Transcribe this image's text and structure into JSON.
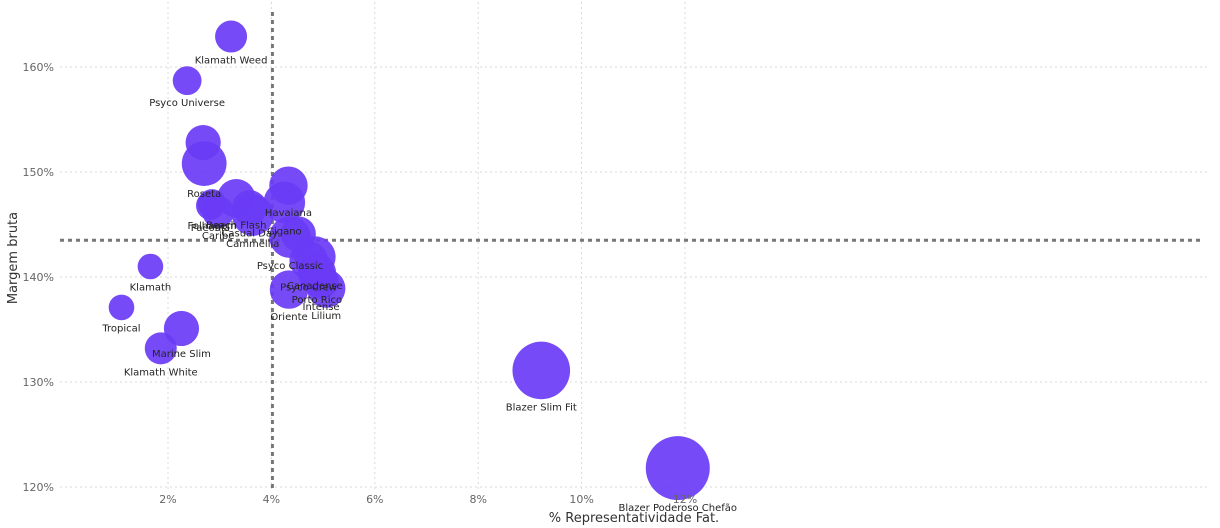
{
  "chart_data": {
    "type": "scatter",
    "title": "",
    "xlabel": "% Representatividade Fat.",
    "ylabel": "Margem bruta",
    "xlim": [
      1.0,
      12.0
    ],
    "ylim": [
      120,
      165
    ],
    "x_ticks": [
      2,
      4,
      6,
      8,
      10,
      12
    ],
    "x_tick_labels": [
      "2%",
      "4%",
      "6%",
      "8%",
      "10%",
      "12%"
    ],
    "y_ticks": [
      120,
      130,
      140,
      150,
      160
    ],
    "y_tick_labels": [
      "120%",
      "130%",
      "140%",
      "150%",
      "160%"
    ],
    "grid": true,
    "bubble_color": "#6a3bf5",
    "reference_line_color": "#777777",
    "average_x": 4.02,
    "average_y": 143.5,
    "points": [
      {
        "label": "Klamath Weed",
        "x": 3.22,
        "y": 162.9,
        "size": 1.0
      },
      {
        "label": "Psyco Universe",
        "x": 2.37,
        "y": 158.7,
        "size": 0.9
      },
      {
        "label": "",
        "x": 2.68,
        "y": 152.8,
        "size": 1.1
      },
      {
        "label": "Roseta",
        "x": 2.7,
        "y": 150.8,
        "size": 1.4
      },
      {
        "label": "Folhagem",
        "x": 2.85,
        "y": 147.0,
        "size": 0.9
      },
      {
        "label": "Paeonia",
        "x": 2.82,
        "y": 146.8,
        "size": 0.9
      },
      {
        "label": "Caribe",
        "x": 2.97,
        "y": 146.2,
        "size": 1.0
      },
      {
        "label": "Beach Flash",
        "x": 3.32,
        "y": 147.5,
        "size": 1.2
      },
      {
        "label": "Casual Day",
        "x": 3.58,
        "y": 146.6,
        "size": 1.1
      },
      {
        "label": "Cammellia",
        "x": 3.64,
        "y": 145.9,
        "size": 1.3
      },
      {
        "label": "Klamath",
        "x": 1.66,
        "y": 141.0,
        "size": 0.8
      },
      {
        "label": "Tropical",
        "x": 1.1,
        "y": 137.1,
        "size": 0.8
      },
      {
        "label": "Marine Slim",
        "x": 2.26,
        "y": 135.1,
        "size": 1.1
      },
      {
        "label": "Klamath White",
        "x": 1.86,
        "y": 133.2,
        "size": 1.0
      },
      {
        "label": "Havaiana",
        "x": 4.33,
        "y": 148.7,
        "size": 1.2
      },
      {
        "label": "Cigano",
        "x": 4.25,
        "y": 147.1,
        "size": 1.3
      },
      {
        "label": "Psyco Classic",
        "x": 4.36,
        "y": 143.8,
        "size": 1.3
      },
      {
        "label": "",
        "x": 4.52,
        "y": 144.1,
        "size": 1.1
      },
      {
        "label": "Psyco Crew",
        "x": 4.72,
        "y": 141.6,
        "size": 1.2
      },
      {
        "label": "Canadense",
        "x": 4.84,
        "y": 141.9,
        "size": 1.3
      },
      {
        "label": "Porto Rico",
        "x": 4.88,
        "y": 140.4,
        "size": 1.2
      },
      {
        "label": "Intense",
        "x": 4.96,
        "y": 139.6,
        "size": 1.1
      },
      {
        "label": "Lilium",
        "x": 5.06,
        "y": 138.9,
        "size": 1.2
      },
      {
        "label": "Oriente",
        "x": 4.34,
        "y": 138.8,
        "size": 1.2
      },
      {
        "label": "Blazer Slim Fit",
        "x": 9.22,
        "y": 131.1,
        "size": 1.8
      },
      {
        "label": "Blazer Poderoso Chefão",
        "x": 11.86,
        "y": 121.8,
        "size": 2.0
      }
    ]
  }
}
